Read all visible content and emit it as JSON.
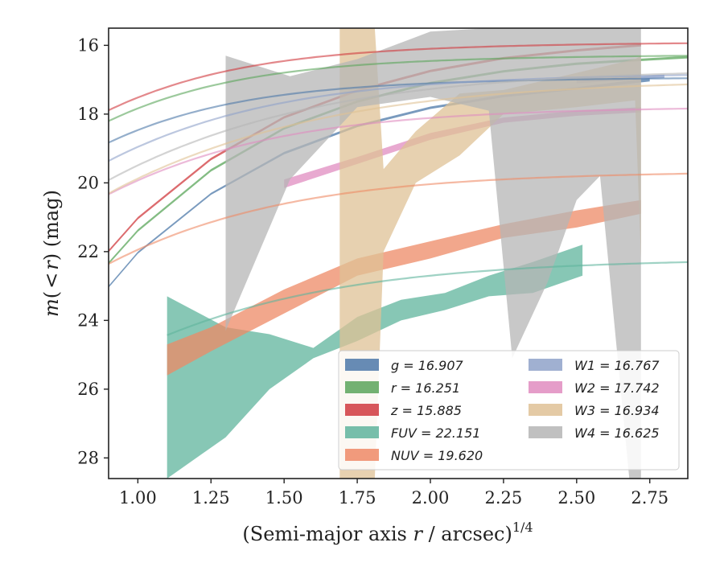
{
  "chart_data": {
    "type": "line",
    "title": "",
    "xlabel": "(Semi-major axis r / arcsec)",
    "xlabel_parts": {
      "pre": "(Semi-major axis ",
      "var": "r",
      "post": " / arcsec)",
      "sup": "1/4"
    },
    "ylabel": "m(<r) (mag)",
    "ylabel_parts": {
      "m": "m",
      "open": "(",
      "lt": "<",
      "r": "r",
      "close": ")",
      "unit": " (mag)"
    },
    "xlim": [
      0.9,
      2.88
    ],
    "ylim": [
      28.6,
      15.5
    ],
    "y_inverted": true,
    "grid": false,
    "legend_position": "lower-right",
    "x_ticks": [
      {
        "value": 1.0,
        "label": "1.00"
      },
      {
        "value": 1.25,
        "label": "1.25"
      },
      {
        "value": 1.5,
        "label": "1.50"
      },
      {
        "value": 1.75,
        "label": "1.75"
      },
      {
        "value": 2.0,
        "label": "2.00"
      },
      {
        "value": 2.25,
        "label": "2.25"
      },
      {
        "value": 2.5,
        "label": "2.50"
      },
      {
        "value": 2.75,
        "label": "2.75"
      }
    ],
    "y_ticks": [
      {
        "value": 16,
        "label": "16"
      },
      {
        "value": 18,
        "label": "18"
      },
      {
        "value": 20,
        "label": "20"
      },
      {
        "value": 22,
        "label": "22"
      },
      {
        "value": 24,
        "label": "24"
      },
      {
        "value": 26,
        "label": "26"
      },
      {
        "value": 28,
        "label": "28"
      }
    ],
    "series": [
      {
        "name": "g",
        "value": "16.907",
        "color": "#4c78a8",
        "fit": {
          "mtot": 16.907,
          "b": 3.2,
          "c": 0.25,
          "x0": 0.9,
          "x1": 2.88
        },
        "band": [
          [
            0.9,
            22.99,
            23.05
          ],
          [
            1.0,
            22.0,
            22.06
          ],
          [
            1.25,
            20.29,
            20.35
          ],
          [
            1.5,
            19.1,
            19.17
          ],
          [
            1.75,
            18.31,
            18.38
          ],
          [
            2.0,
            17.78,
            17.85
          ],
          [
            2.25,
            17.44,
            17.51
          ],
          [
            2.5,
            17.22,
            17.29
          ],
          [
            2.75,
            16.95,
            17.05
          ]
        ]
      },
      {
        "name": "r",
        "value": "16.251",
        "color": "#5aa55a",
        "fit": {
          "mtot": 16.251,
          "b": 3.3,
          "c": 0.25,
          "x0": 0.9,
          "x1": 2.88
        },
        "band": [
          [
            0.9,
            22.3,
            22.37
          ],
          [
            1.0,
            21.35,
            21.42
          ],
          [
            1.25,
            19.6,
            19.67
          ],
          [
            1.5,
            18.38,
            18.45
          ],
          [
            1.75,
            17.6,
            17.67
          ],
          [
            2.0,
            17.06,
            17.13
          ],
          [
            2.25,
            16.72,
            16.79
          ],
          [
            2.5,
            16.5,
            16.57
          ],
          [
            2.75,
            16.37,
            16.44
          ],
          [
            2.88,
            16.31,
            16.38
          ]
        ]
      },
      {
        "name": "z",
        "value": "15.885",
        "color": "#d0393e",
        "fit": {
          "mtot": 15.885,
          "b": 3.5,
          "c": 0.25,
          "x0": 0.9,
          "x1": 2.88
        },
        "band": [
          [
            0.9,
            21.95,
            22.02
          ],
          [
            1.0,
            20.99,
            21.06
          ],
          [
            1.25,
            19.27,
            19.34
          ],
          [
            1.5,
            18.06,
            18.13
          ],
          [
            1.75,
            17.28,
            17.35
          ],
          [
            2.0,
            16.71,
            16.78
          ],
          [
            2.25,
            16.34,
            16.41
          ],
          [
            2.5,
            16.11,
            16.18
          ],
          [
            2.72,
            15.96,
            16.03
          ]
        ]
      },
      {
        "name": "FUV",
        "value": "22.151",
        "color": "#5fb49c",
        "fit": {
          "mtot": 22.151,
          "b": 10.5,
          "c": 0.25,
          "x0": 1.1,
          "x1": 2.88
        },
        "band": [
          [
            1.1,
            23.3,
            28.6
          ],
          [
            1.3,
            24.2,
            27.4
          ],
          [
            1.45,
            24.4,
            26.0
          ],
          [
            1.6,
            24.8,
            25.1
          ],
          [
            1.75,
            23.9,
            24.6
          ],
          [
            1.9,
            23.4,
            24.0
          ],
          [
            2.05,
            23.2,
            23.7
          ],
          [
            2.2,
            22.7,
            23.3
          ],
          [
            2.35,
            22.3,
            23.2
          ],
          [
            2.52,
            21.8,
            22.7
          ]
        ]
      },
      {
        "name": "NUV",
        "value": "19.620",
        "color": "#ee8a66",
        "fit": {
          "mtot": 19.62,
          "b": 7.5,
          "c": 0.25,
          "x0": 0.9,
          "x1": 2.88
        },
        "band": [
          [
            1.1,
            24.7,
            25.6
          ],
          [
            1.25,
            24.2,
            24.9
          ],
          [
            1.5,
            23.1,
            23.8
          ],
          [
            1.75,
            22.2,
            22.7
          ],
          [
            2.0,
            21.7,
            22.2
          ],
          [
            2.25,
            21.2,
            21.6
          ],
          [
            2.5,
            20.8,
            21.3
          ],
          [
            2.72,
            20.5,
            20.9
          ]
        ]
      },
      {
        "name": "W1",
        "value": "16.767",
        "color": "#8fa2c9",
        "fit": {
          "mtot": 16.767,
          "b": 6.5,
          "c": 0.25,
          "x0": 0.9,
          "x1": 2.88
        },
        "band": [
          [
            2.5,
            17.0,
            17.1
          ],
          [
            2.8,
            16.85,
            16.95
          ]
        ]
      },
      {
        "name": "W2",
        "value": "17.742",
        "color": "#e08cc0",
        "fit": {
          "mtot": 17.742,
          "b": 6.5,
          "c": 0.25,
          "x0": 0.9,
          "x1": 2.88
        },
        "band": [
          [
            1.5,
            19.9,
            20.15
          ],
          [
            1.75,
            19.25,
            19.45
          ],
          [
            2.0,
            18.55,
            18.75
          ],
          [
            2.25,
            18.1,
            18.25
          ],
          [
            2.5,
            17.9,
            18.05
          ],
          [
            2.72,
            17.8,
            17.95
          ]
        ]
      },
      {
        "name": "W3",
        "value": "16.934",
        "color": "#dfc195",
        "fit": {
          "mtot": 16.934,
          "b": 14.0,
          "c": 0.25,
          "x0": 0.9,
          "x1": 2.88
        },
        "band": [
          [
            1.69,
            15.5,
            28.6
          ],
          [
            1.81,
            15.5,
            28.6
          ],
          [
            1.84,
            19.6,
            22.0
          ],
          [
            1.95,
            18.5,
            20.0
          ],
          [
            2.1,
            17.4,
            19.2
          ],
          [
            2.25,
            17.3,
            18.0
          ],
          [
            2.5,
            16.8,
            17.8
          ],
          [
            2.7,
            16.4,
            17.6
          ],
          [
            2.72,
            16.3,
            22.2
          ]
        ]
      },
      {
        "name": "W4",
        "value": "16.625",
        "color": "#b5b5b5",
        "fit": {
          "mtot": 16.625,
          "b": 13.0,
          "c": 0.25,
          "x0": 0.9,
          "x1": 2.88
        },
        "band": [
          [
            1.3,
            16.3,
            24.3
          ],
          [
            1.52,
            16.9,
            19.9
          ],
          [
            1.75,
            16.4,
            17.8
          ],
          [
            2.0,
            15.6,
            17.5
          ],
          [
            2.2,
            15.5,
            17.9
          ],
          [
            2.28,
            15.5,
            25.1
          ],
          [
            2.4,
            15.5,
            22.9
          ],
          [
            2.5,
            15.5,
            20.5
          ],
          [
            2.58,
            15.5,
            19.8
          ],
          [
            2.68,
            15.5,
            28.6
          ],
          [
            2.72,
            15.5,
            28.6
          ]
        ]
      }
    ]
  }
}
